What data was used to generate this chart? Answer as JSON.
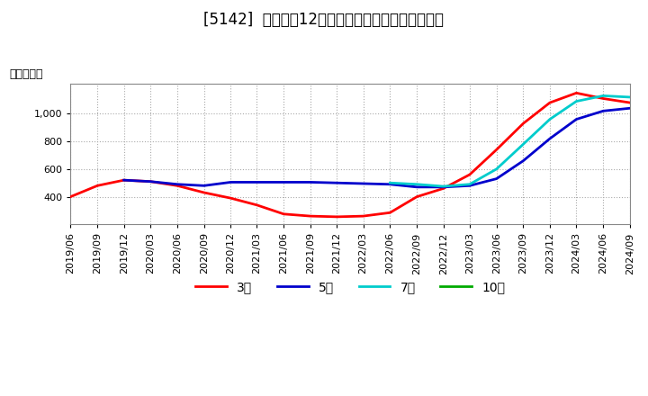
{
  "title": "[5142]  経常利益12か月移動合計の標準偏差の推移",
  "ylabel": "（百万円）",
  "background_color": "#ffffff",
  "plot_bg_color": "#ffffff",
  "grid_color": "#aaaaaa",
  "ylim": [
    200,
    1220
  ],
  "yticks": [
    400,
    600,
    800,
    1000
  ],
  "series": {
    "3year": {
      "color": "#ff0000",
      "label": "3年",
      "points": [
        [
          "2019-06",
          400
        ],
        [
          "2019-09",
          480
        ],
        [
          "2019-12",
          520
        ],
        [
          "2020-03",
          510
        ],
        [
          "2020-06",
          480
        ],
        [
          "2020-09",
          430
        ],
        [
          "2020-12",
          390
        ],
        [
          "2021-03",
          340
        ],
        [
          "2021-06",
          275
        ],
        [
          "2021-09",
          260
        ],
        [
          "2021-12",
          255
        ],
        [
          "2022-03",
          260
        ],
        [
          "2022-06",
          285
        ],
        [
          "2022-09",
          400
        ],
        [
          "2022-12",
          460
        ],
        [
          "2023-03",
          560
        ],
        [
          "2023-06",
          740
        ],
        [
          "2023-09",
          930
        ],
        [
          "2023-12",
          1080
        ],
        [
          "2024-03",
          1150
        ],
        [
          "2024-06",
          1110
        ],
        [
          "2024-09",
          1080
        ]
      ]
    },
    "5year": {
      "color": "#0000cc",
      "label": "5年",
      "points": [
        [
          "2019-06",
          null
        ],
        [
          "2019-09",
          null
        ],
        [
          "2019-12",
          520
        ],
        [
          "2020-03",
          510
        ],
        [
          "2020-06",
          490
        ],
        [
          "2020-09",
          480
        ],
        [
          "2020-12",
          505
        ],
        [
          "2021-03",
          505
        ],
        [
          "2021-06",
          505
        ],
        [
          "2021-09",
          505
        ],
        [
          "2021-12",
          500
        ],
        [
          "2022-03",
          495
        ],
        [
          "2022-06",
          490
        ],
        [
          "2022-09",
          470
        ],
        [
          "2022-12",
          470
        ],
        [
          "2023-03",
          480
        ],
        [
          "2023-06",
          530
        ],
        [
          "2023-09",
          660
        ],
        [
          "2023-12",
          820
        ],
        [
          "2024-03",
          960
        ],
        [
          "2024-06",
          1020
        ],
        [
          "2024-09",
          1040
        ]
      ]
    },
    "7year": {
      "color": "#00cccc",
      "label": "7年",
      "points": [
        [
          "2022-06",
          500
        ],
        [
          "2022-09",
          490
        ],
        [
          "2022-12",
          475
        ],
        [
          "2023-03",
          490
        ],
        [
          "2023-06",
          600
        ],
        [
          "2023-09",
          780
        ],
        [
          "2023-12",
          960
        ],
        [
          "2024-03",
          1090
        ],
        [
          "2024-06",
          1130
        ],
        [
          "2024-09",
          1120
        ]
      ]
    },
    "10year": {
      "color": "#00aa00",
      "label": "10年",
      "points": []
    }
  },
  "x_tick_labels": [
    "2019/06",
    "2019/09",
    "2019/12",
    "2020/03",
    "2020/06",
    "2020/09",
    "2020/12",
    "2021/03",
    "2021/06",
    "2021/09",
    "2021/12",
    "2022/03",
    "2022/06",
    "2022/09",
    "2022/12",
    "2023/03",
    "2023/06",
    "2023/09",
    "2023/12",
    "2024/03",
    "2024/06",
    "2024/09"
  ],
  "line_width": 2.0,
  "title_fontsize": 12,
  "axis_fontsize": 9,
  "tick_fontsize": 8
}
